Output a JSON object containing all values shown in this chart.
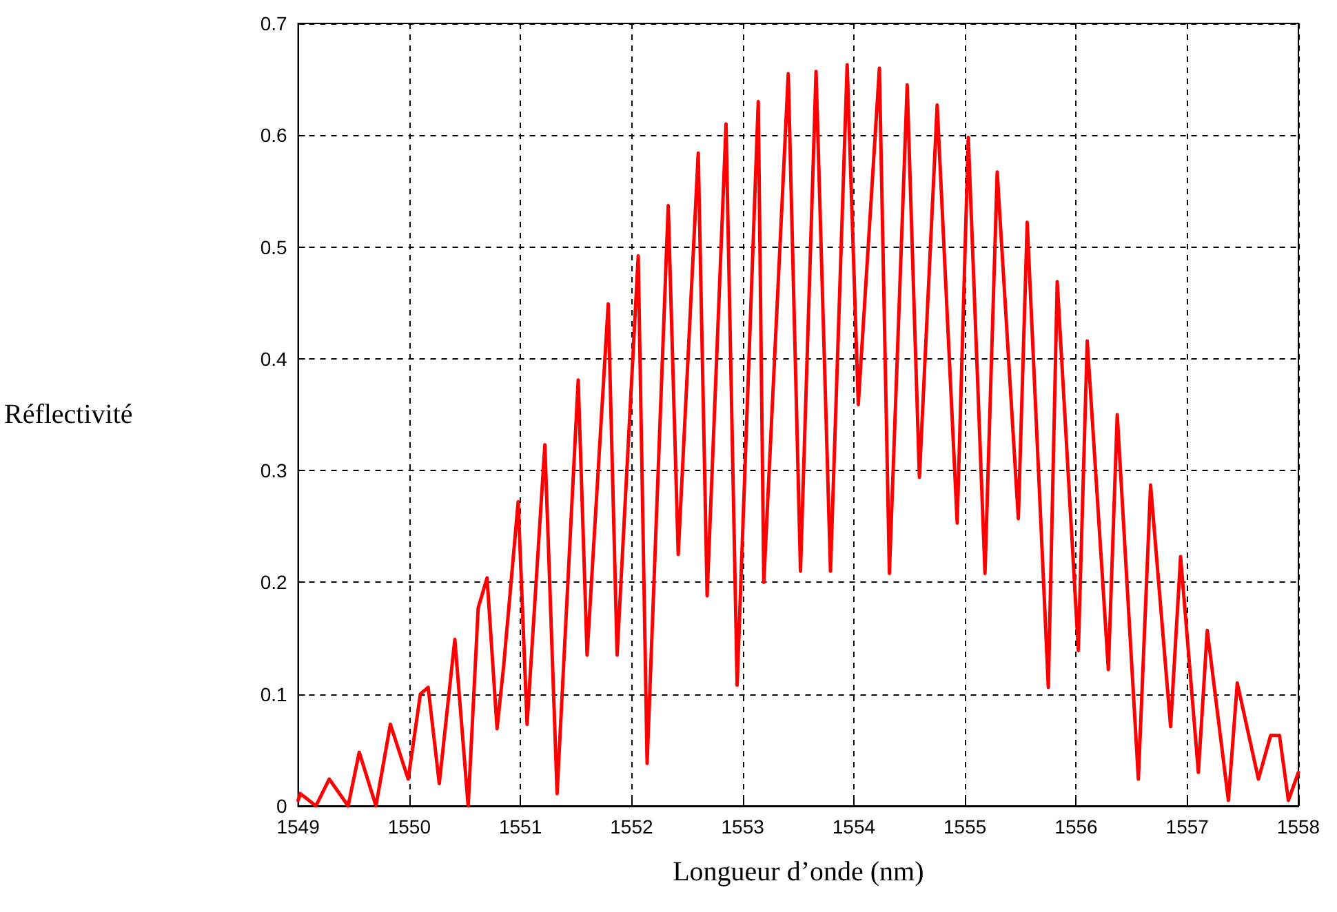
{
  "chart_data": {
    "type": "line",
    "xlabel": "Longueur d’onde (nm)",
    "ylabel": "Réflectivité",
    "x": [
      1549.0,
      1549.02,
      1549.16,
      1549.28,
      1549.45,
      1549.55,
      1549.7,
      1549.83,
      1549.99,
      1550.1,
      1550.17,
      1550.27,
      1550.41,
      1550.53,
      1550.62,
      1550.7,
      1550.79,
      1550.85,
      1550.98,
      1551.06,
      1551.22,
      1551.33,
      1551.52,
      1551.6,
      1551.79,
      1551.87,
      1552.06,
      1552.14,
      1552.33,
      1552.42,
      1552.6,
      1552.68,
      1552.85,
      1552.95,
      1553.14,
      1553.19,
      1553.41,
      1553.52,
      1553.66,
      1553.79,
      1553.94,
      1554.04,
      1554.23,
      1554.32,
      1554.48,
      1554.59,
      1554.75,
      1554.93,
      1555.03,
      1555.18,
      1555.29,
      1555.48,
      1555.56,
      1555.75,
      1555.83,
      1556.02,
      1556.1,
      1556.29,
      1556.37,
      1556.56,
      1556.67,
      1556.85,
      1556.94,
      1557.1,
      1557.18,
      1557.37,
      1557.45,
      1557.64,
      1557.75,
      1557.83,
      1557.91,
      1558.0
    ],
    "series": [
      {
        "color": "#ff0000",
        "values": [
          0.005,
          0.011,
          0.0,
          0.024,
          0.0,
          0.048,
          0.0,
          0.073,
          0.024,
          0.1,
          0.106,
          0.02,
          0.149,
          0.0,
          0.177,
          0.204,
          0.069,
          0.126,
          0.272,
          0.073,
          0.323,
          0.011,
          0.381,
          0.135,
          0.449,
          0.135,
          0.492,
          0.038,
          0.537,
          0.225,
          0.584,
          0.188,
          0.61,
          0.108,
          0.63,
          0.2,
          0.655,
          0.21,
          0.657,
          0.21,
          0.663,
          0.359,
          0.66,
          0.208,
          0.645,
          0.294,
          0.627,
          0.253,
          0.598,
          0.208,
          0.567,
          0.257,
          0.522,
          0.106,
          0.469,
          0.139,
          0.416,
          0.122,
          0.35,
          0.024,
          0.287,
          0.071,
          0.223,
          0.03,
          0.157,
          0.005,
          0.11,
          0.024,
          0.063,
          0.063,
          0.005,
          0.03
        ]
      }
    ],
    "xlim": [
      1549,
      1558
    ],
    "xticks": [
      1549,
      1550,
      1551,
      1552,
      1553,
      1554,
      1555,
      1556,
      1557,
      1558
    ],
    "ylim": [
      0,
      0.7
    ],
    "yticks": [
      0,
      0.1,
      0.2,
      0.3,
      0.4,
      0.5,
      0.6,
      0.7
    ],
    "grid": true,
    "marker": "none",
    "line_style": "solid"
  }
}
